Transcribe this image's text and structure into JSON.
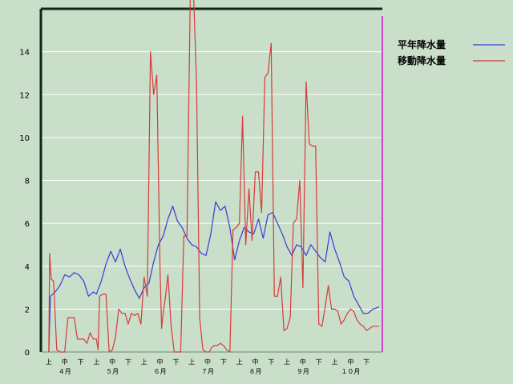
{
  "chart_data": {
    "type": "line",
    "ylim": [
      0,
      16
    ],
    "y_ticks": [
      0,
      2,
      4,
      6,
      8,
      10,
      12,
      14
    ],
    "grid": "horizontal",
    "legend_position": "top-right",
    "x_tick_labels": [
      "上",
      "中",
      "下",
      "上",
      "中",
      "下",
      "上",
      "中",
      "下",
      "上",
      "中",
      "下",
      "上",
      "中",
      "下",
      "上",
      "中",
      "下",
      "上",
      "中",
      "下"
    ],
    "month_labels": [
      "４月",
      "５月",
      "６月",
      "７月",
      "８月",
      "９月",
      "１０月"
    ],
    "month_label_positions": [
      1,
      4,
      7,
      10,
      13,
      16,
      19
    ],
    "x_range": [
      -0.5,
      21
    ],
    "background_color": "#c9dfc9",
    "series": [
      {
        "name": "平年降水量",
        "color": "#3a3ad8",
        "x": [
          0,
          0.1,
          0.4,
          0.7,
          1,
          1.3,
          1.6,
          1.9,
          2.2,
          2.5,
          2.8,
          3,
          3.3,
          3.6,
          3.9,
          4.2,
          4.5,
          4.8,
          5.1,
          5.4,
          5.7,
          6,
          6.3,
          6.6,
          6.9,
          7.2,
          7.5,
          7.8,
          8.1,
          8.4,
          8.7,
          9,
          9.3,
          9.6,
          9.9,
          10.2,
          10.5,
          10.8,
          11.1,
          11.4,
          11.7,
          12,
          12.3,
          12.6,
          12.9,
          13.2,
          13.5,
          13.8,
          14.1,
          14.4,
          14.7,
          15,
          15.3,
          15.6,
          15.9,
          16.2,
          16.5,
          16.8,
          17.1,
          17.4,
          17.7,
          18,
          18.3,
          18.6,
          18.9,
          19.2,
          19.5,
          19.8,
          20.1,
          20.4,
          20.8
        ],
        "values": [
          0,
          2.6,
          2.8,
          3.1,
          3.6,
          3.5,
          3.7,
          3.6,
          3.3,
          2.6,
          2.8,
          2.7,
          3.3,
          4.1,
          4.7,
          4.2,
          4.8,
          4.0,
          3.4,
          2.9,
          2.5,
          3.0,
          3.2,
          4.2,
          5.0,
          5.4,
          6.2,
          6.8,
          6.1,
          5.8,
          5.3,
          5.0,
          4.9,
          4.6,
          4.5,
          5.5,
          7.0,
          6.6,
          6.8,
          5.8,
          4.3,
          5.2,
          5.8,
          5.6,
          5.5,
          6.2,
          5.3,
          6.4,
          6.5,
          6.0,
          5.5,
          4.9,
          4.5,
          5.0,
          4.9,
          4.5,
          5.0,
          4.7,
          4.4,
          4.2,
          5.6,
          4.8,
          4.2,
          3.5,
          3.3,
          2.6,
          2.2,
          1.8,
          1.8,
          2.0,
          2.1
        ]
      },
      {
        "name": "移動降水量",
        "color": "#d83a3a",
        "x": [
          0,
          0.05,
          0.15,
          0.3,
          0.5,
          0.7,
          1,
          1.2,
          1.4,
          1.6,
          1.8,
          2,
          2.2,
          2.4,
          2.6,
          2.8,
          3,
          3.1,
          3.2,
          3.4,
          3.6,
          3.8,
          4,
          4.2,
          4.4,
          4.6,
          4.8,
          5,
          5.2,
          5.4,
          5.6,
          5.8,
          6,
          6.2,
          6.4,
          6.6,
          6.8,
          7.0,
          7.1,
          7.2,
          7.35,
          7.5,
          7.7,
          7.9,
          8.1,
          8.3,
          8.5,
          8.7,
          8.9,
          9.1,
          9.3,
          9.5,
          9.7,
          9.9,
          10.1,
          10.25,
          10.4,
          10.6,
          10.8,
          11,
          11.2,
          11.4,
          11.6,
          11.8,
          12,
          12.2,
          12.4,
          12.6,
          12.8,
          13,
          13.2,
          13.4,
          13.6,
          13.8,
          14,
          14.2,
          14.4,
          14.6,
          14.8,
          15,
          15.2,
          15.4,
          15.6,
          15.8,
          16,
          16.2,
          16.4,
          16.6,
          16.8,
          17,
          17.2,
          17.4,
          17.6,
          17.8,
          18,
          18.2,
          18.4,
          18.6,
          18.8,
          19,
          19.2,
          19.4,
          19.6,
          19.8,
          20,
          20.2,
          20.4,
          20.6,
          20.8
        ],
        "values": [
          0,
          4.6,
          3.4,
          3.3,
          0.1,
          0,
          0,
          1.6,
          1.6,
          1.6,
          0.6,
          0.6,
          0.6,
          0.4,
          0.9,
          0.6,
          0.6,
          0.1,
          2.6,
          2.7,
          2.7,
          0,
          0.1,
          0.7,
          2.0,
          1.8,
          1.8,
          1.3,
          1.8,
          1.7,
          1.8,
          1.3,
          3.5,
          2.6,
          14.0,
          12.0,
          12.9,
          4.0,
          1.1,
          1.8,
          2.6,
          3.6,
          1.2,
          0,
          0,
          0,
          5.4,
          5.4,
          16.4,
          17.0,
          12.6,
          1.6,
          0.1,
          0,
          0,
          0.2,
          0.3,
          0.3,
          0.4,
          0.3,
          0.1,
          0,
          5.7,
          5.8,
          6.0,
          11.0,
          5.0,
          7.6,
          5.2,
          8.4,
          8.4,
          6.5,
          12.8,
          13.0,
          14.4,
          2.6,
          2.6,
          3.5,
          1.0,
          1.1,
          1.6,
          6.0,
          6.2,
          8.0,
          3.0,
          12.6,
          9.7,
          9.6,
          9.6,
          1.3,
          1.2,
          2.1,
          3.1,
          2.0,
          2.0,
          1.9,
          1.3,
          1.5,
          1.8,
          2.0,
          1.9,
          1.5,
          1.3,
          1.2,
          1.0,
          1.1,
          1.2,
          1.2,
          1.2
        ]
      }
    ]
  }
}
